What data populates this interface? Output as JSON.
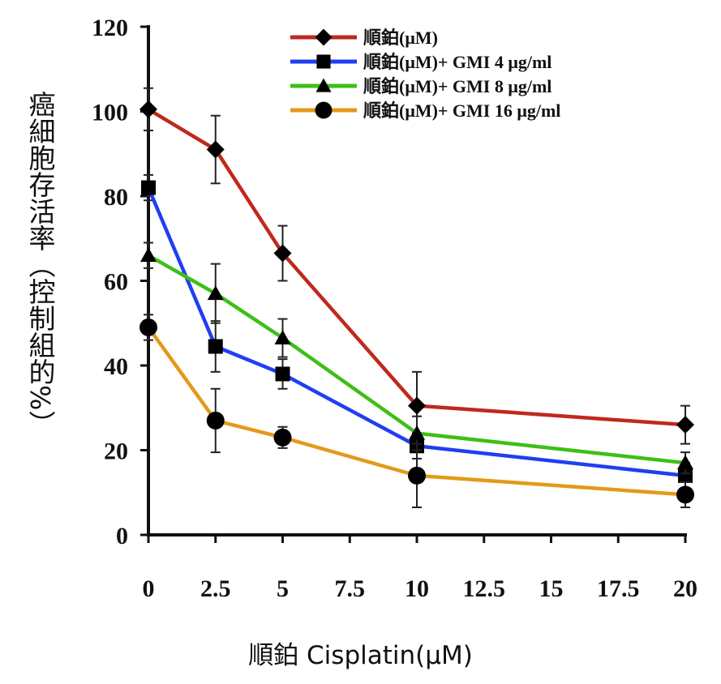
{
  "chart_data": {
    "type": "line",
    "title": "",
    "xlabel": "順鉑 Cisplatin(μM)",
    "ylabel": "癌細胞存活率（控制組的%）",
    "xlim": [
      0,
      20
    ],
    "ylim": [
      0,
      120
    ],
    "xticks": [
      0,
      2.5,
      5,
      7.5,
      10,
      12.5,
      15,
      17.5,
      20
    ],
    "xtick_labels": [
      "0",
      "2.5",
      "5",
      "7.5",
      "10",
      "12.5",
      "15",
      "17.5",
      "20"
    ],
    "yticks": [
      0,
      20,
      40,
      60,
      80,
      100,
      120
    ],
    "ytick_labels": [
      "0",
      "20",
      "40",
      "60",
      "80",
      "100",
      "120"
    ],
    "x": [
      0,
      2.5,
      5,
      10,
      20
    ],
    "legend_position": "top-right",
    "series": [
      {
        "name": "順鉑(μM)",
        "color": "#c0281e",
        "marker": "diamond",
        "values": [
          100.5,
          91,
          66.5,
          30.5,
          26
        ],
        "errors": [
          5,
          8,
          6.5,
          8,
          4.5
        ]
      },
      {
        "name": "順鉑(μM)+ GMI 4 μg/ml",
        "color": "#1f3ff0",
        "marker": "square",
        "values": [
          82,
          44.5,
          38,
          21,
          14
        ],
        "errors": [
          3,
          6,
          3.5,
          3,
          3
        ]
      },
      {
        "name": "順鉑(μM)+ GMI 8 μg/ml",
        "color": "#3dbf16",
        "marker": "triangle",
        "values": [
          66,
          57,
          46.5,
          24,
          17
        ],
        "errors": [
          3,
          7,
          4.5,
          4,
          2.5
        ]
      },
      {
        "name": "順鉑(μM)+ GMI 16 μg/ml",
        "color": "#e39a19",
        "marker": "circle",
        "values": [
          49,
          27,
          23,
          14,
          9.5
        ],
        "errors": [
          3,
          7.5,
          2.5,
          7.5,
          3
        ]
      }
    ]
  }
}
